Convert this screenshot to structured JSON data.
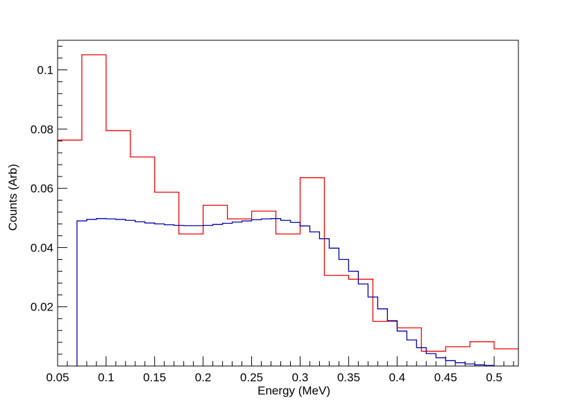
{
  "chart_data": {
    "type": "histogram",
    "title": "",
    "xlabel": "Energy (MeV)",
    "ylabel": "Counts (Arb)",
    "xlim": [
      0.05,
      0.525
    ],
    "ylim": [
      0.0,
      0.11
    ],
    "x_ticks": [
      "0.05",
      "0.1",
      "0.15",
      "0.2",
      "0.25",
      "0.3",
      "0.35",
      "0.4",
      "0.45",
      "0.5"
    ],
    "x_tick_values": [
      0.05,
      0.1,
      0.15,
      0.2,
      0.25,
      0.3,
      0.35,
      0.4,
      0.45,
      0.5
    ],
    "y_ticks": [
      "0.02",
      "0.04",
      "0.06",
      "0.08",
      "0.1"
    ],
    "y_tick_values": [
      0.02,
      0.04,
      0.06,
      0.08,
      0.1
    ],
    "grid": false,
    "legend": "none",
    "series": [
      {
        "color": "#ee0000",
        "bin_edges": [
          0.05,
          0.075,
          0.1,
          0.125,
          0.15,
          0.175,
          0.2,
          0.225,
          0.25,
          0.275,
          0.3,
          0.325,
          0.35,
          0.375,
          0.4,
          0.425,
          0.45,
          0.475,
          0.5,
          0.525
        ],
        "values": [
          0.0763,
          0.1051,
          0.0795,
          0.0706,
          0.0587,
          0.0446,
          0.0543,
          0.0497,
          0.0523,
          0.0446,
          0.0636,
          0.0306,
          0.0293,
          0.0151,
          0.0129,
          0.005,
          0.0065,
          0.0082,
          0.0058
        ]
      },
      {
        "color": "#0000aa",
        "bin_edges": [
          0.07,
          0.08,
          0.09,
          0.1,
          0.11,
          0.12,
          0.13,
          0.14,
          0.15,
          0.16,
          0.17,
          0.18,
          0.19,
          0.2,
          0.21,
          0.22,
          0.23,
          0.24,
          0.25,
          0.26,
          0.27,
          0.28,
          0.29,
          0.3,
          0.31,
          0.32,
          0.33,
          0.34,
          0.35,
          0.36,
          0.37,
          0.38,
          0.39,
          0.4,
          0.41,
          0.42,
          0.43,
          0.44,
          0.45,
          0.46,
          0.47,
          0.48,
          0.49,
          0.5
        ],
        "values": [
          0.049,
          0.0495,
          0.0498,
          0.0497,
          0.0495,
          0.0492,
          0.0487,
          0.0483,
          0.048,
          0.0477,
          0.0475,
          0.0474,
          0.0474,
          0.0475,
          0.0478,
          0.0482,
          0.0486,
          0.049,
          0.0494,
          0.0497,
          0.0498,
          0.0492,
          0.0485,
          0.0473,
          0.0453,
          0.043,
          0.0398,
          0.036,
          0.032,
          0.0277,
          0.0233,
          0.0193,
          0.0153,
          0.0118,
          0.0088,
          0.0062,
          0.0042,
          0.0028,
          0.0018,
          0.0011,
          0.0007,
          0.0004,
          0.0002
        ]
      }
    ]
  }
}
